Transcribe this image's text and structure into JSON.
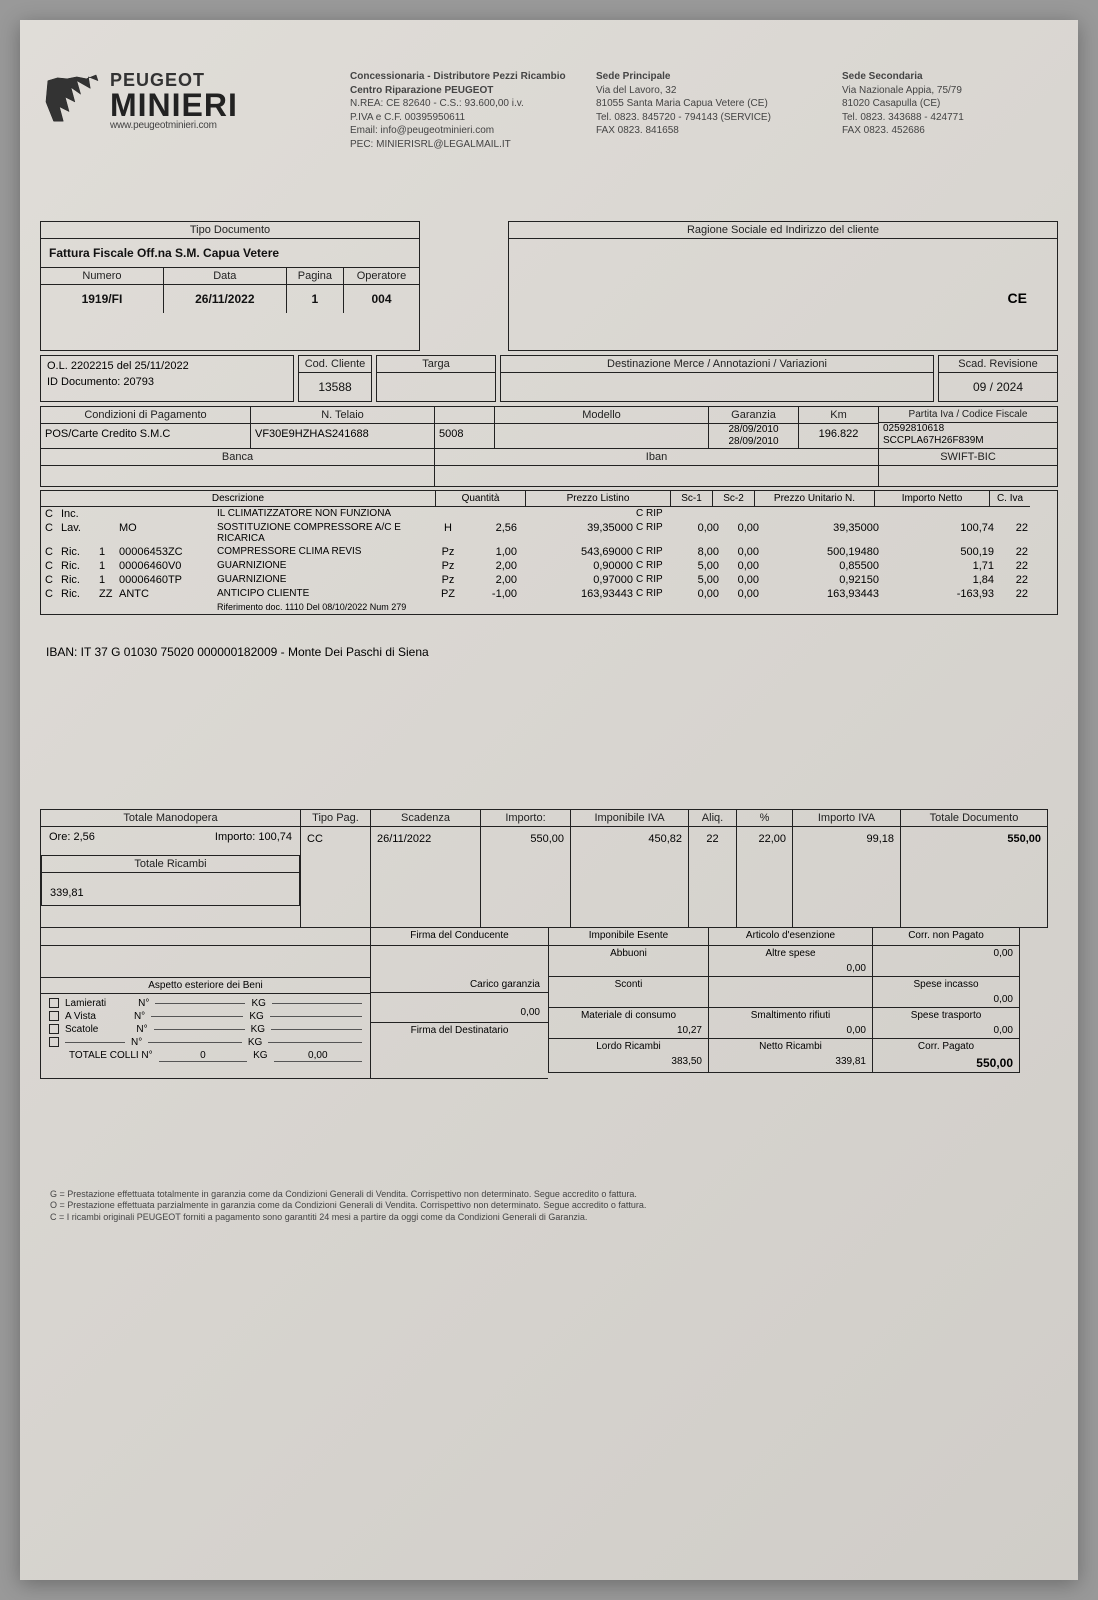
{
  "header": {
    "brand1": "PEUGEOT",
    "brand2": "MINIERI",
    "website": "www.peugeotminieri.com",
    "dealer": {
      "l1": "Concessionaria - Distributore Pezzi Ricambio",
      "l2": "Centro Riparazione PEUGEOT",
      "l3": "N.REA: CE 82640 - C.S.: 93.600,00 i.v.",
      "l4": "P.IVA e C.F. 00395950611",
      "l5": "Email: info@peugeotminieri.com",
      "l6": "PEC: MINIERISRL@LEGALMAIL.IT"
    },
    "sede1": {
      "title": "Sede Principale",
      "l1": "Via del Lavoro, 32",
      "l2": "81055 Santa Maria Capua Vetere (CE)",
      "l3": "Tel. 0823. 845720 - 794143 (SERVICE)",
      "l4": "FAX 0823. 841658"
    },
    "sede2": {
      "title": "Sede Secondaria",
      "l1": "Via Nazionale Appia, 75/79",
      "l2": "81020 Casapulla (CE)",
      "l3": "Tel. 0823. 343688 - 424771",
      "l4": "FAX 0823. 452686"
    }
  },
  "labels": {
    "tipo_doc": "Tipo Documento",
    "numero": "Numero",
    "data": "Data",
    "pagina": "Pagina",
    "operatore": "Operatore",
    "ragione": "Ragione Sociale ed Indirizzo del cliente",
    "cod_cliente": "Cod. Cliente",
    "targa": "Targa",
    "dest": "Destinazione Merce / Annotazioni / Variazioni",
    "scad_rev": "Scad. Revisione",
    "cond_pag": "Condizioni di Pagamento",
    "n_telaio": "N. Telaio",
    "modello": "Modello",
    "garanzia": "Garanzia",
    "km": "Km",
    "piva": "Partita Iva / Codice Fiscale",
    "banca": "Banca",
    "iban": "Iban",
    "swift": "SWIFT-BIC",
    "descrizione": "Descrizione",
    "quantita": "Quantità",
    "prezzo_listino": "Prezzo Listino",
    "sc1": "Sc-1",
    "sc2": "Sc-2",
    "prezzo_unitario": "Prezzo Unitario N.",
    "importo_netto": "Importo Netto",
    "c_iva": "C. Iva",
    "tot_man": "Totale Manodopera",
    "ore": "Ore:",
    "importo": "Importo:",
    "tot_ric": "Totale Ricambi",
    "tipo_pag": "Tipo Pag.",
    "scadenza": "Scadenza",
    "imp_iva": "Imponibile IVA",
    "aliq": "Aliq.",
    "pct": "%",
    "importo_iva": "Importo IVA",
    "tot_doc": "Totale Documento",
    "firma_cond": "Firma del Conducente",
    "imp_esente": "Imponibile Esente",
    "art_esenz": "Articolo d'esenzione",
    "corr_np": "Corr. non Pagato",
    "abbuoni": "Abbuoni",
    "altre_spese": "Altre spese",
    "spese_inc": "Spese incasso",
    "aspetto": "Aspetto esteriore dei Beni",
    "carico_gar": "Carico garanzia",
    "sconti": "Sconti",
    "spese_tras": "Spese trasporto",
    "mat_cons": "Materiale di consumo",
    "smalt": "Smaltimento rifiuti",
    "lordo_ric": "Lordo Ricambi",
    "netto_ric": "Netto Ricambi",
    "corr_pag": "Corr. Pagato",
    "firma_dest": "Firma del Destinatario",
    "lamierati": "Lamierati",
    "a_vista": "A Vista",
    "scatole": "Scatole",
    "tot_colli": "TOTALE COLLI N°"
  },
  "doc": {
    "tipo": "Fattura Fiscale Off.na S.M. Capua Vetere",
    "numero": "1919/FI",
    "data": "26/11/2022",
    "pagina": "1",
    "operatore": "004",
    "ce": "CE",
    "ol": "O.L.    2202215   del   25/11/2022",
    "id_doc": "ID Documento: 20793",
    "cod_cliente": "13588",
    "scad_rev": "09 / 2024",
    "cond_pag": "POS/Carte Credito S.M.C",
    "telaio": "VF30E9HZHAS241688",
    "modello": "5008",
    "gar1": "28/09/2010",
    "gar2": "28/09/2010",
    "km": "196.822",
    "piva1": "02592810618",
    "piva2": "SCCPLA67H26F839M"
  },
  "items": [
    {
      "c": "C",
      "t": "Inc.",
      "q": "",
      "code": "",
      "desc": "IL CLIMATIZZATORE NON FUNZIONA",
      "um": "",
      "qta": "",
      "pl": "",
      "rip": "C RIP",
      "sc1": "",
      "sc2": "",
      "pu": "",
      "imp": "",
      "iva": ""
    },
    {
      "c": "C",
      "t": "Lav.",
      "q": "",
      "code": "MO",
      "desc": "SOSTITUZIONE COMPRESSORE A/C E RICARICA",
      "um": "H",
      "qta": "2,56",
      "pl": "39,35000",
      "rip": "C RIP",
      "sc1": "0,00",
      "sc2": "0,00",
      "pu": "39,35000",
      "imp": "100,74",
      "iva": "22"
    },
    {
      "c": "C",
      "t": "Ric.",
      "q": "1",
      "code": "00006453ZC",
      "desc": "COMPRESSORE CLIMA REVIS",
      "um": "Pz",
      "qta": "1,00",
      "pl": "543,69000",
      "rip": "C RIP",
      "sc1": "8,00",
      "sc2": "0,00",
      "pu": "500,19480",
      "imp": "500,19",
      "iva": "22"
    },
    {
      "c": "C",
      "t": "Ric.",
      "q": "1",
      "code": "00006460V0",
      "desc": "GUARNIZIONE",
      "um": "Pz",
      "qta": "2,00",
      "pl": "0,90000",
      "rip": "C RIP",
      "sc1": "5,00",
      "sc2": "0,00",
      "pu": "0,85500",
      "imp": "1,71",
      "iva": "22"
    },
    {
      "c": "C",
      "t": "Ric.",
      "q": "1",
      "code": "00006460TP",
      "desc": "GUARNIZIONE",
      "um": "Pz",
      "qta": "2,00",
      "pl": "0,97000",
      "rip": "C RIP",
      "sc1": "5,00",
      "sc2": "0,00",
      "pu": "0,92150",
      "imp": "1,84",
      "iva": "22"
    },
    {
      "c": "C",
      "t": "Ric.",
      "q": "ZZ",
      "code": "ANTC",
      "desc": "ANTICIPO CLIENTE",
      "um": "PZ",
      "qta": "-1,00",
      "pl": "163,93443",
      "rip": "C RIP",
      "sc1": "0,00",
      "sc2": "0,00",
      "pu": "163,93443",
      "imp": "-163,93",
      "iva": "22"
    }
  ],
  "rif": "Riferimento doc. 1110 Del 08/10/2022 Num 279",
  "iban_line": "IBAN: IT 37 G 01030 75020 000000182009 - Monte Dei Paschi di Siena",
  "totals": {
    "ore": "2,56",
    "imp_man": "100,74",
    "ricambi": "339,81",
    "tipo_pag": "CC",
    "scadenza": "26/11/2022",
    "importo": "550,00",
    "imp_iva": "450,82",
    "aliq": "22",
    "pct": "22,00",
    "importo_iva": "99,18",
    "tot_doc": "550,00",
    "altre_spese": "0,00",
    "corr_np": "0,00",
    "spese_inc": "0,00",
    "carico_gar": "0,00",
    "mat_cons": "10,27",
    "smalt": "0,00",
    "spese_tras": "0,00",
    "lordo_ric": "383,50",
    "netto_ric": "339,81",
    "corr_pag": "550,00",
    "colli_n": "0",
    "colli_kg": "0,00"
  },
  "footnotes": {
    "g": "G = Prestazione effettuata totalmente in garanzia come da Condizioni Generali di Vendita. Corrispettivo non determinato. Segue accredito o fattura.",
    "o": "O = Prestazione effettuata parzialmente in garanzia come da Condizioni Generali di Vendita. Corrispettivo non determinato. Segue accredito o fattura.",
    "c": "C = I ricambi originali PEUGEOT forniti a pagamento sono garantiti 24 mesi a partire da oggi come da Condizioni Generali di Garanzia."
  }
}
